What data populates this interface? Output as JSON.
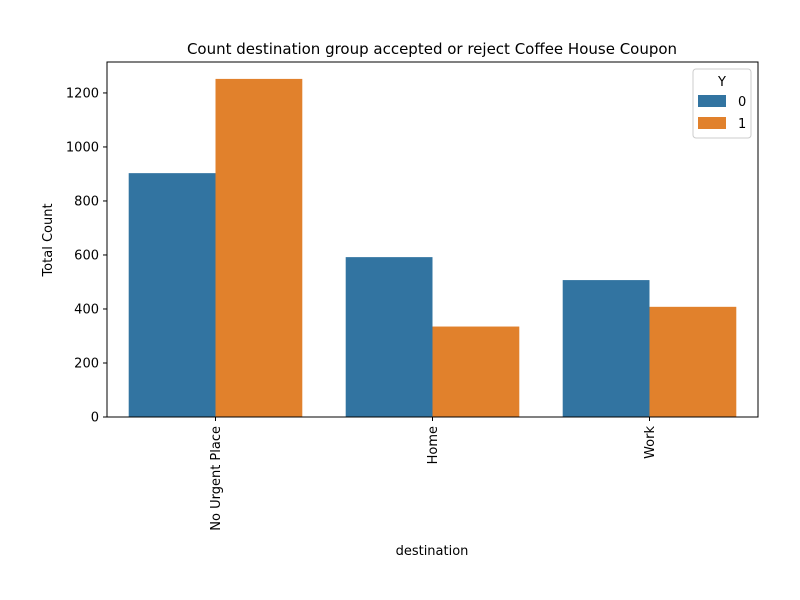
{
  "chart_data": {
    "type": "bar",
    "title": "Count destination group accepted or reject Coffee House Coupon",
    "xlabel": "destination",
    "ylabel": "Total Count",
    "categories": [
      "No Urgent Place",
      "Home",
      "Work"
    ],
    "series": [
      {
        "name": "0",
        "values": [
          903,
          592,
          507
        ],
        "color": "#3274a1"
      },
      {
        "name": "1",
        "values": [
          1252,
          335,
          408
        ],
        "color": "#e1812c"
      }
    ],
    "yticks": [
      0,
      200,
      400,
      600,
      800,
      1000,
      1200
    ],
    "ylim": [
      0,
      1314.6
    ],
    "grid": false,
    "legend": {
      "title": "Y",
      "placement": "top-right"
    }
  }
}
